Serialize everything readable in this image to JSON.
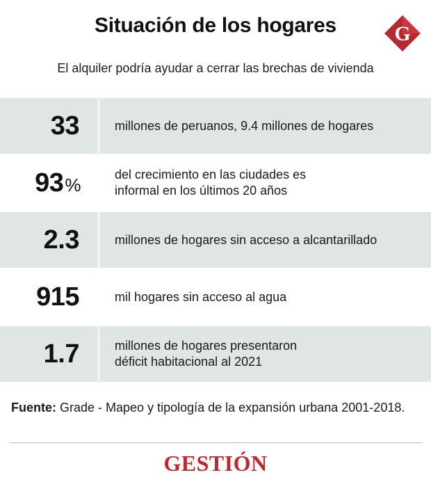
{
  "header": {
    "title": "Situación de los hogares",
    "subtitle": "El alquiler podría ayudar a cerrar las brechas de vivienda",
    "logo_letter": "G",
    "logo_color": "#b8282f"
  },
  "stats": [
    {
      "value": "33",
      "suffix": "",
      "text": "millones de peruanos, 9.4 millones de hogares"
    },
    {
      "value": "93",
      "suffix": "%",
      "text": "del crecimiento en las ciudades es\ninformal en los últimos 20 años"
    },
    {
      "value": "2.3",
      "suffix": "",
      "text": "millones de hogares sin acceso a alcantarillado"
    },
    {
      "value": "915",
      "suffix": "",
      "text": "mil hogares sin acceso al agua"
    },
    {
      "value": "1.7",
      "suffix": "",
      "text": "millones de hogares presentaron\ndéficit habitacional al 2021"
    }
  ],
  "source": {
    "label": "Fuente:",
    "text": " Grade - Mapeo y tipología de la expansión urbana 2001-2018."
  },
  "footer": {
    "brand": "GESTIÓN",
    "brand_color": "#c2272d"
  },
  "colors": {
    "row_shade": "#dfe6e4"
  }
}
